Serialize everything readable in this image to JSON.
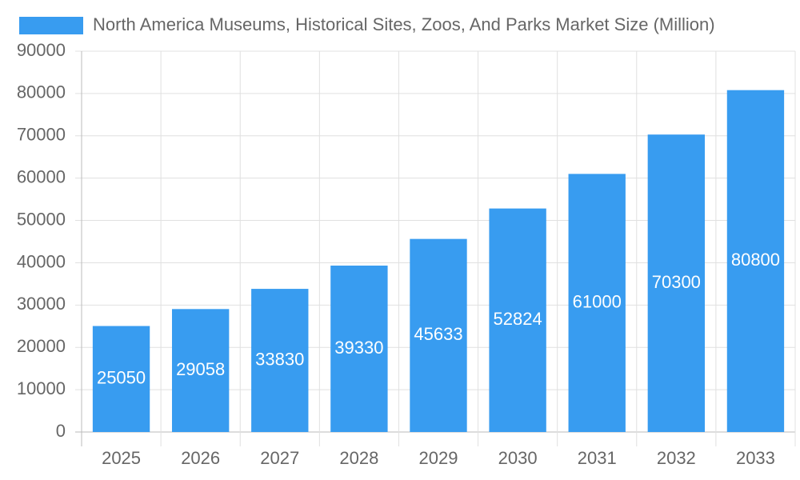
{
  "chart_data": {
    "type": "bar",
    "categories": [
      "2025",
      "2026",
      "2027",
      "2028",
      "2029",
      "2030",
      "2031",
      "2032",
      "2033"
    ],
    "series": [
      {
        "name": "North America Museums, Historical Sites, Zoos, And Parks Market Size (Million)",
        "color": "#389cf0",
        "values": [
          25050,
          29058,
          33830,
          39330,
          45633,
          52824,
          61000,
          70300,
          80800
        ]
      }
    ],
    "ylim": [
      0,
      90000
    ],
    "yticks": [
      0,
      10000,
      20000,
      30000,
      40000,
      50000,
      60000,
      70000,
      80000,
      90000
    ],
    "grid": true,
    "legend": "top"
  }
}
